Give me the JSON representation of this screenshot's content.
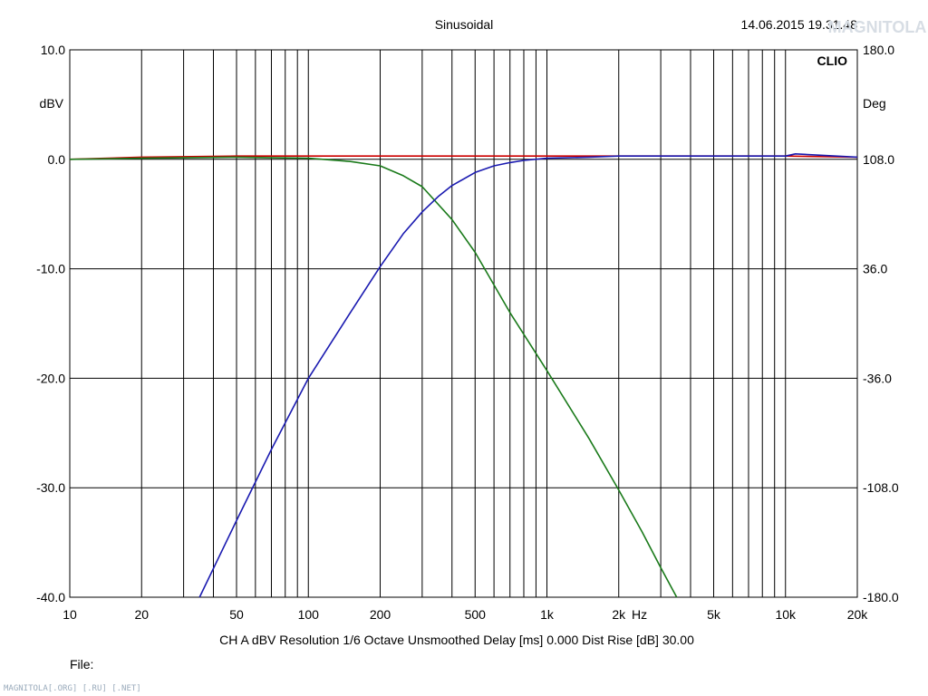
{
  "header": {
    "title": "Sinusoidal",
    "timestamp": "14.06.2015 19.31.48",
    "brand": "CLIO"
  },
  "watermark": {
    "logo_text": "MAGNITOLA",
    "footer_text": "MAGNITOLA[.ORG] [.RU] [.NET]"
  },
  "footer": {
    "params": "CH A   dBV   Resolution 1/6 Octave   Unsmoothed   Delay [ms] 0.000   Dist Rise [dB] 30.00",
    "file_label": "File:"
  },
  "colors": {
    "red": "#cc0000",
    "green": "#1a7a1a",
    "blue": "#1a1ab0",
    "grid": "#000000"
  },
  "chart_data": {
    "type": "line",
    "title": "Sinusoidal",
    "xlabel": "Hz",
    "ylabel": "dBV",
    "y2label": "Deg",
    "xscale": "log",
    "xlim": [
      10,
      20000
    ],
    "ylim": [
      -40,
      10
    ],
    "y2lim": [
      -180,
      180
    ],
    "x_ticks": [
      10,
      20,
      50,
      100,
      200,
      500,
      1000,
      2000,
      5000,
      10000,
      20000
    ],
    "x_tick_labels": [
      "10",
      "20",
      "50",
      "100",
      "200",
      "500",
      "1k",
      "2k",
      "5k",
      "10k",
      "20k"
    ],
    "y_ticks": [
      10,
      0,
      -10,
      -20,
      -30,
      -40
    ],
    "y_tick_labels": [
      "10.0",
      "0.0",
      "-10.0",
      "-20.0",
      "-30.0",
      "-40.0"
    ],
    "y2_ticks": [
      180,
      108,
      36,
      -36,
      -108,
      -180
    ],
    "y2_tick_labels": [
      "180.0",
      "108.0",
      "36.0",
      "-36.0",
      "-108.0",
      "-180.0"
    ],
    "grid": true,
    "series": [
      {
        "color": "#cc0000",
        "x": [
          10,
          20,
          50,
          100,
          200,
          500,
          1000,
          2000,
          5000,
          10000,
          20000
        ],
        "y": [
          0.0,
          0.2,
          0.3,
          0.3,
          0.3,
          0.3,
          0.3,
          0.3,
          0.3,
          0.3,
          0.2
        ]
      },
      {
        "color": "#1a7a1a",
        "x": [
          10,
          20,
          50,
          100,
          150,
          200,
          250,
          300,
          400,
          500,
          700,
          1000,
          1500,
          2000,
          2500,
          3000,
          3500
        ],
        "y": [
          0.0,
          0.1,
          0.2,
          0.1,
          -0.2,
          -0.6,
          -1.5,
          -2.5,
          -5.5,
          -8.5,
          -14,
          -19.3,
          -25.5,
          -30.2,
          -34,
          -37.3,
          -40
        ]
      },
      {
        "color": "#1a1ab0",
        "x": [
          35,
          50,
          70,
          100,
          150,
          200,
          250,
          300,
          350,
          400,
          500,
          600,
          700,
          800,
          1000,
          1500,
          2000,
          5000,
          10000,
          11000,
          20000
        ],
        "y": [
          -40,
          -33,
          -26.5,
          -20,
          -14,
          -9.8,
          -6.8,
          -4.8,
          -3.4,
          -2.4,
          -1.2,
          -0.6,
          -0.3,
          -0.1,
          0.1,
          0.2,
          0.3,
          0.3,
          0.3,
          0.5,
          0.2
        ]
      }
    ]
  }
}
